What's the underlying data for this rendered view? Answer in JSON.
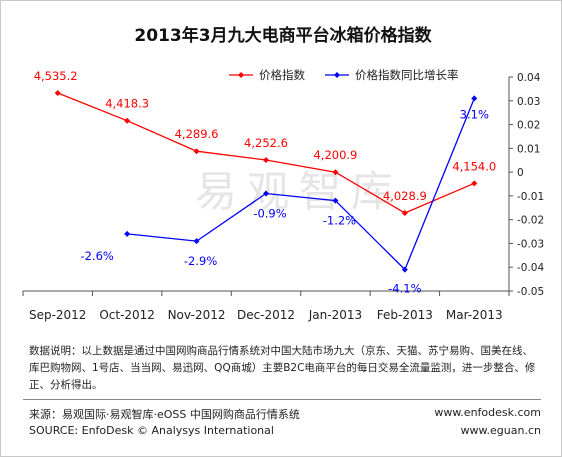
{
  "chart_data": {
    "type": "line",
    "title": "2013年3月九大电商平台冰箱价格指数",
    "categories": [
      "Sep-2012",
      "Oct-2012",
      "Nov-2012",
      "Dec-2012",
      "Jan-2013",
      "Feb-2013",
      "Mar-2013"
    ],
    "series": [
      {
        "name": "价格指数",
        "axis": "left",
        "color": "#ff0000",
        "values": [
          4535.2,
          4418.3,
          4289.6,
          4252.6,
          4200.9,
          4028.9,
          4154.0
        ],
        "labels": [
          "4,535.2",
          "4,418.3",
          "4,289.6",
          "4,252.6",
          "4,200.9",
          "4,028.9",
          "4,154.0"
        ]
      },
      {
        "name": "价格指数同比增长率",
        "axis": "right",
        "color": "#0000ff",
        "values": [
          null,
          -0.026,
          -0.029,
          -0.009,
          -0.012,
          -0.041,
          0.031
        ],
        "labels": [
          "",
          "-2.6%",
          "-2.9%",
          "-0.9%",
          "-1.2%",
          "-4.1%",
          "3.1%"
        ]
      }
    ],
    "y2lim": [
      -0.05,
      0.04
    ],
    "y2ticks": [
      "0.04",
      "0.03",
      "0.02",
      "0.01",
      "0",
      "-0.01",
      "-0.02",
      "-0.03",
      "-0.04",
      "-0.05"
    ],
    "legend_position": "top",
    "grid": false,
    "watermark": "易观智库"
  },
  "note": "数据说明：以上数据是通过中国网购商品行情系统对中国大陆市场九大（京东、天猫、苏宁易购、国美在线、库巴购物网、1号店、当当网、易迅网、QQ商城）主要B2C电商平台的每日交易全流量监测，进一步整合、修正、分析得出。",
  "source_cn": "来源：易观国际·易观智库·eOSS 中国网购商品行情系统",
  "source_en": "SOURCE: EnfoDesk © Analysys International",
  "url1": "www.enfodesk.com",
  "url2": "www.eguan.cn"
}
